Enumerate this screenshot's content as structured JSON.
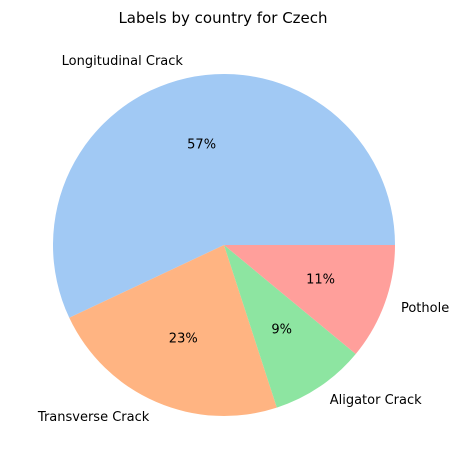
{
  "chart_data": {
    "type": "pie",
    "title": "Labels by country for Czech",
    "slices": [
      {
        "label": "Longitudinal Crack",
        "value": 57,
        "pct_text": "57%",
        "color": "#a1c9f4"
      },
      {
        "label": "Transverse Crack",
        "value": 23,
        "pct_text": "23%",
        "color": "#ffb482"
      },
      {
        "label": "Aligator Crack",
        "value": 9,
        "pct_text": "9%",
        "color": "#8de5a1"
      },
      {
        "label": "Pothole",
        "value": 11,
        "pct_text": "11%",
        "color": "#ff9f9b"
      }
    ],
    "start_angle": "3 o'clock",
    "direction": "counterclockwise",
    "legend": "none"
  }
}
